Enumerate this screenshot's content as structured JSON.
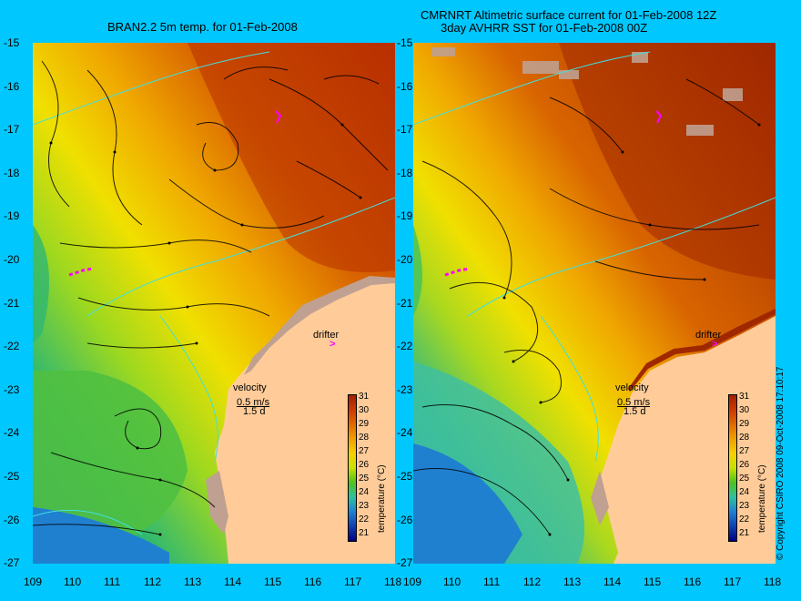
{
  "left": {
    "title": "BRAN2.2 5m temp. for 01-Feb-2008",
    "velocity_label": "velocity",
    "velocity_scale": "0.5 m/s",
    "velocity_time": "1.5 d",
    "drifter_label": "drifter",
    "drifter_marker": ">"
  },
  "right": {
    "title_line1": "CMRNRT Altimetric surface current for 01-Feb-2008 12Z",
    "title_line2": "3day AVHRR SST for 01-Feb-2008 00Z",
    "velocity_label": "velocity",
    "velocity_scale": "0.5 m/s",
    "velocity_time": "1.5 d",
    "drifter_label": "drifter",
    "drifter_marker": ">"
  },
  "y_ticks": [
    "-15",
    "-16",
    "-17",
    "-18",
    "-19",
    "-20",
    "-21",
    "-22",
    "-23",
    "-24",
    "-25",
    "-26",
    "-27"
  ],
  "x_ticks": [
    "109",
    "110",
    "111",
    "112",
    "113",
    "114",
    "115",
    "116",
    "117",
    "118"
  ],
  "colorbar": {
    "ticks": [
      "31",
      "30",
      "29",
      "28",
      "27",
      "26",
      "25",
      "24",
      "23",
      "22",
      "21"
    ],
    "label": "temperature (°C)",
    "colors": [
      "#a02000",
      "#cc3a00",
      "#e06a00",
      "#f0a000",
      "#f5d000",
      "#c8e000",
      "#50c020",
      "#30c0a0",
      "#2080d0",
      "#1040b0",
      "#000080"
    ]
  },
  "copyright": "© Copyright CSIRO 2008   09-Oct-2008 17:10:17",
  "colors": {
    "background": "#00c8ff",
    "land": "#ffcc99",
    "coast_mask": "#c0a090",
    "contour": "#40e0e0",
    "drifter": "#ff00ff"
  }
}
